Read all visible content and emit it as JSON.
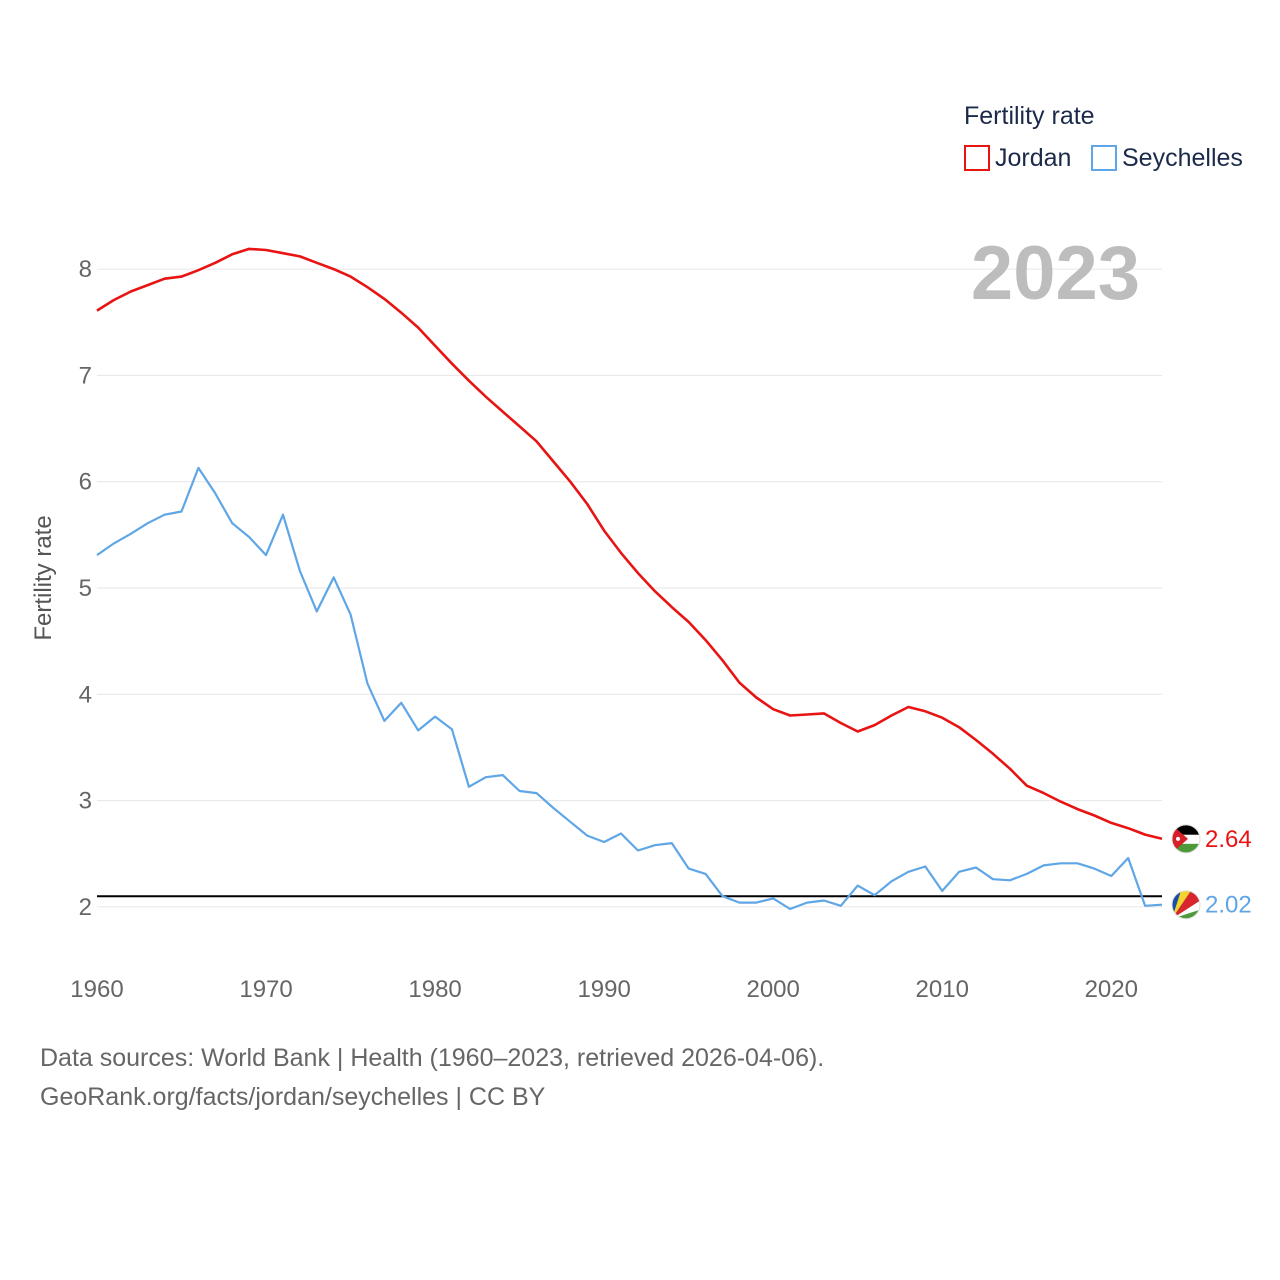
{
  "chart_data": {
    "type": "line",
    "year_label": "2023",
    "ylabel": "Fertility rate",
    "xlim": [
      1960,
      2023
    ],
    "ylim": [
      1.5,
      8.5
    ],
    "yticks": [
      2,
      3,
      4,
      5,
      6,
      7,
      8
    ],
    "xticks": [
      1960,
      1970,
      1980,
      1990,
      2000,
      2010,
      2020
    ],
    "grid": true,
    "legend_position": "top-right",
    "legend": {
      "title": "Fertility rate"
    },
    "reference_line": {
      "y": 2.1,
      "color": "#000000"
    },
    "x": [
      1960,
      1961,
      1962,
      1963,
      1964,
      1965,
      1966,
      1967,
      1968,
      1969,
      1970,
      1971,
      1972,
      1973,
      1974,
      1975,
      1976,
      1977,
      1978,
      1979,
      1980,
      1981,
      1982,
      1983,
      1984,
      1985,
      1986,
      1987,
      1988,
      1989,
      1990,
      1991,
      1992,
      1993,
      1994,
      1995,
      1996,
      1997,
      1998,
      1999,
      2000,
      2001,
      2002,
      2003,
      2004,
      2005,
      2006,
      2007,
      2008,
      2009,
      2010,
      2011,
      2012,
      2013,
      2014,
      2015,
      2016,
      2017,
      2018,
      2019,
      2020,
      2021,
      2022,
      2023
    ],
    "series": [
      {
        "name": "Jordan",
        "color": "#e81414",
        "end_label": "2.64",
        "values": [
          7.61,
          7.71,
          7.79,
          7.85,
          7.91,
          7.93,
          7.99,
          8.06,
          8.14,
          8.19,
          8.18,
          8.15,
          8.12,
          8.06,
          8.0,
          7.93,
          7.83,
          7.72,
          7.59,
          7.45,
          7.28,
          7.11,
          6.95,
          6.8,
          6.66,
          6.52,
          6.38,
          6.19,
          6.0,
          5.79,
          5.54,
          5.33,
          5.14,
          4.97,
          4.82,
          4.68,
          4.51,
          4.32,
          4.11,
          3.97,
          3.86,
          3.8,
          3.81,
          3.82,
          3.73,
          3.65,
          3.71,
          3.8,
          3.88,
          3.84,
          3.78,
          3.69,
          3.57,
          3.44,
          3.3,
          3.14,
          3.07,
          2.99,
          2.92,
          2.86,
          2.79,
          2.74,
          2.68,
          2.64
        ]
      },
      {
        "name": "Seychelles",
        "color": "#5fa6e6",
        "end_label": "2.02",
        "values": [
          5.31,
          5.42,
          5.51,
          5.61,
          5.69,
          5.72,
          6.13,
          5.89,
          5.61,
          5.48,
          5.31,
          5.69,
          5.16,
          4.78,
          5.1,
          4.75,
          4.1,
          3.75,
          3.92,
          3.66,
          3.79,
          3.67,
          3.13,
          3.22,
          3.24,
          3.09,
          3.07,
          2.93,
          2.8,
          2.67,
          2.61,
          2.69,
          2.53,
          2.58,
          2.6,
          2.36,
          2.31,
          2.1,
          2.04,
          2.04,
          2.08,
          1.98,
          2.04,
          2.06,
          2.01,
          2.2,
          2.11,
          2.24,
          2.33,
          2.38,
          2.15,
          2.33,
          2.37,
          2.26,
          2.25,
          2.31,
          2.39,
          2.41,
          2.41,
          2.36,
          2.29,
          2.46,
          2.01,
          2.02
        ]
      }
    ]
  },
  "footer": {
    "line1": "Data sources: World Bank | Health (1960–2023, retrieved 2026-04-06).",
    "line2": "GeoRank.org/facts/jordan/seychelles | CC BY"
  }
}
